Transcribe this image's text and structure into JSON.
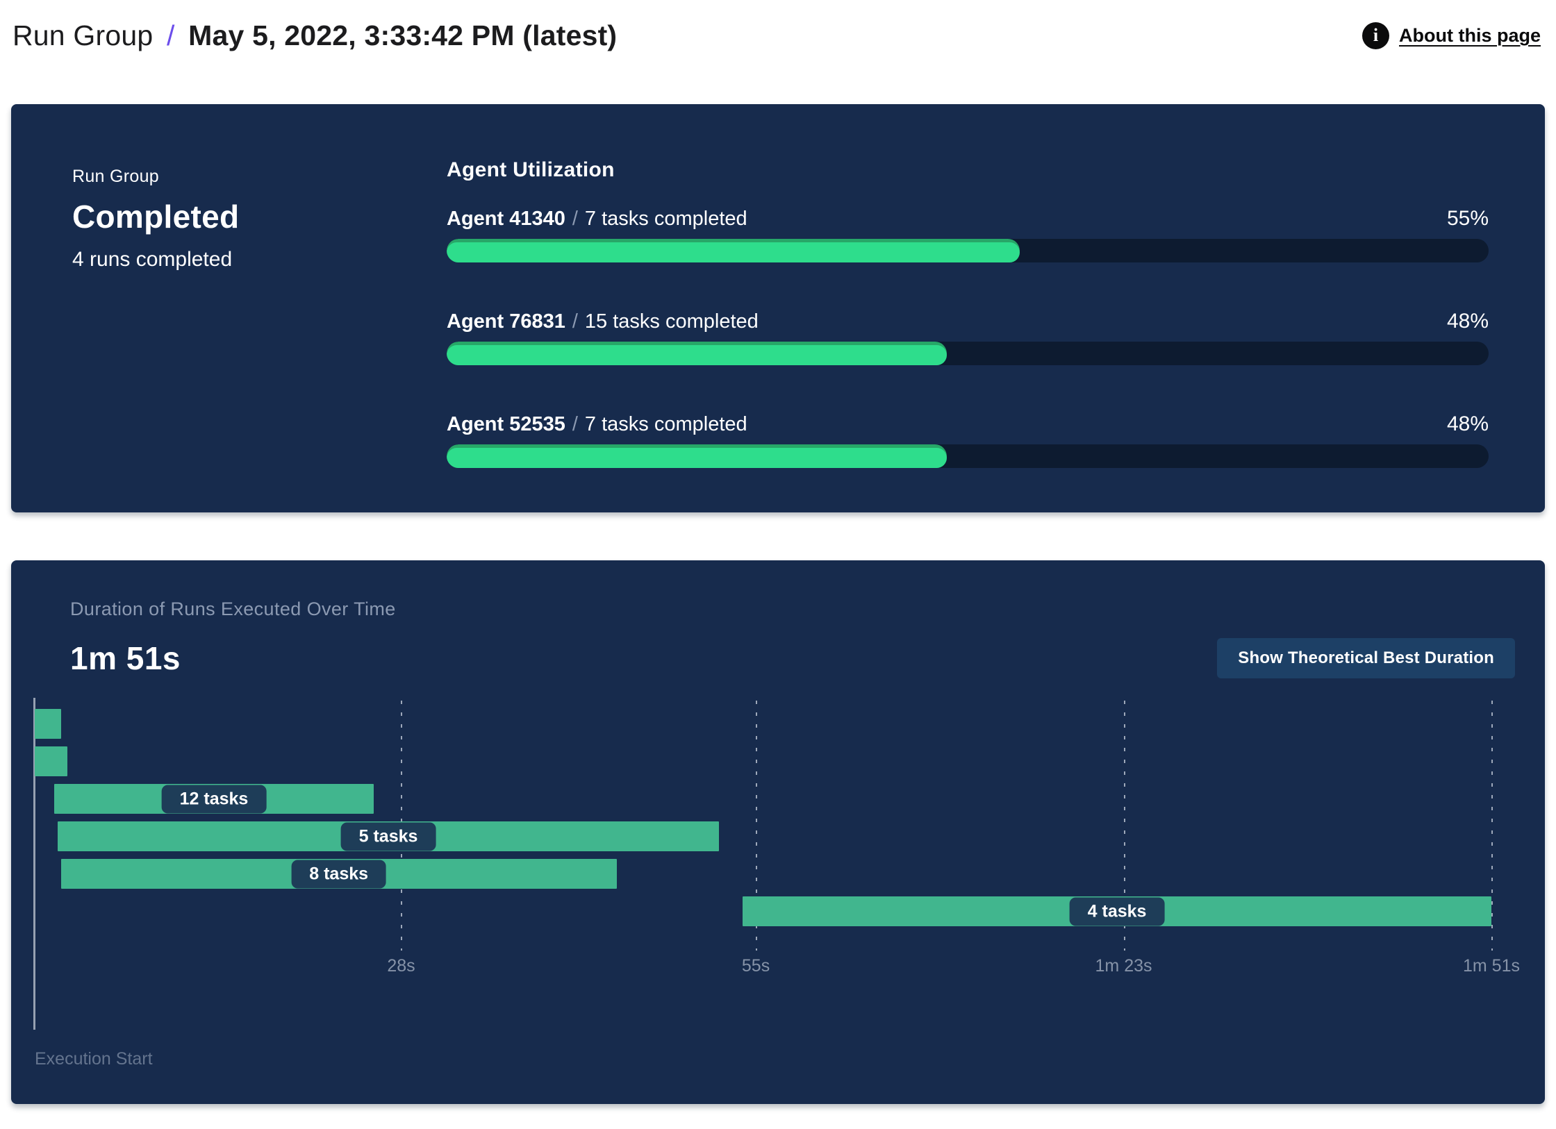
{
  "header": {
    "breadcrumb_root": "Run Group",
    "breadcrumb_separator": "/",
    "breadcrumb_current": "May 5, 2022, 3:33:42 PM (latest)",
    "info_icon": "i",
    "about_link": "About this page"
  },
  "status_card": {
    "eyebrow": "Run Group",
    "status": "Completed",
    "subtext": "4 runs completed"
  },
  "agent_utilization": {
    "title": "Agent Utilization",
    "separator": "/",
    "agents": [
      {
        "name": "Agent 41340",
        "tasks": "7 tasks completed",
        "percent_label": "55%",
        "percent": 55
      },
      {
        "name": "Agent 76831",
        "tasks": "15 tasks completed",
        "percent_label": "48%",
        "percent": 48
      },
      {
        "name": "Agent 52535",
        "tasks": "7 tasks completed",
        "percent_label": "48%",
        "percent": 48
      }
    ]
  },
  "duration_panel": {
    "title": "Duration of Runs Executed Over Time",
    "total_duration": "1m 51s",
    "button_label": "Show Theoretical Best Duration",
    "origin_label": "Execution Start"
  },
  "chart_data": {
    "type": "gantt",
    "title": "Duration of Runs Executed Over Time",
    "x_unit": "seconds",
    "x_min": 0,
    "x_max": 111,
    "x_ticks": [
      {
        "value": 28,
        "label": "28s"
      },
      {
        "value": 55,
        "label": "55s"
      },
      {
        "value": 83,
        "label": "1m 23s"
      },
      {
        "value": 111,
        "label": "1m 51s"
      }
    ],
    "runs": [
      {
        "start_s": 0.1,
        "end_s": 2.1,
        "label": ""
      },
      {
        "start_s": 0.1,
        "end_s": 2.6,
        "label": ""
      },
      {
        "start_s": 1.6,
        "end_s": 25.9,
        "label": "12 tasks"
      },
      {
        "start_s": 1.85,
        "end_s": 52.2,
        "label": "5 tasks"
      },
      {
        "start_s": 2.1,
        "end_s": 44.4,
        "label": "8 tasks"
      },
      {
        "start_s": 54.0,
        "end_s": 111.0,
        "label": "4 tasks"
      }
    ]
  },
  "colors": {
    "panel_bg": "#172B4D",
    "progress_track": "#0D1B30",
    "progress_fill": "#2EDD8C",
    "progress_fill_dark": "#27A768",
    "gantt_bar": "#41B68E",
    "pill_bg": "#1E3D58",
    "button_bg": "#1D4066",
    "breadcrumb_accent": "#6C4EEB",
    "muted_text": "#8C9AB2"
  }
}
